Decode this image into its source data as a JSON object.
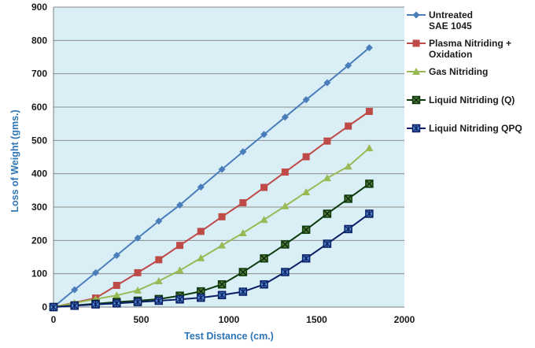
{
  "chart_data": {
    "type": "line",
    "title": "",
    "xlabel": "Test Distance (cm.)",
    "ylabel": "Loss of Weight (gms.)",
    "xlim": [
      0,
      2000
    ],
    "ylim": [
      0,
      900
    ],
    "xticks": [
      0,
      500,
      1000,
      1500,
      2000
    ],
    "yticks": [
      0,
      100,
      200,
      300,
      400,
      500,
      600,
      700,
      800,
      900
    ],
    "grid": "horizontal",
    "legend_position": "right",
    "plot_background": "#d9eef5",
    "series": [
      {
        "name_lines": [
          "Untreated",
          "SAE 1045"
        ],
        "color": "#4a7ebb",
        "marker": "diamond",
        "x": [
          0,
          120,
          240,
          360,
          480,
          600,
          720,
          840,
          960,
          1080,
          1200,
          1320,
          1440,
          1560,
          1680,
          1800
        ],
        "values": [
          0,
          52,
          103,
          155,
          207,
          258,
          306,
          360,
          413,
          466,
          518,
          570,
          622,
          673,
          725,
          778
        ]
      },
      {
        "name_lines": [
          "Plasma Nitriding +",
          "Oxidation"
        ],
        "color": "#be4b48",
        "marker": "square",
        "x": [
          0,
          240,
          360,
          480,
          600,
          720,
          840,
          960,
          1080,
          1200,
          1320,
          1440,
          1560,
          1680,
          1800
        ],
        "values": [
          0,
          27,
          65,
          103,
          142,
          185,
          227,
          271,
          313,
          359,
          405,
          451,
          498,
          543,
          587
        ]
      },
      {
        "name_lines": [
          "Gas Nitriding"
        ],
        "color": "#98b954",
        "marker": "triangle",
        "x": [
          0,
          120,
          240,
          360,
          480,
          600,
          720,
          840,
          960,
          1080,
          1200,
          1320,
          1440,
          1560,
          1680,
          1800
        ],
        "values": [
          0,
          12,
          24,
          35,
          50,
          78,
          110,
          147,
          185,
          222,
          262,
          303,
          345,
          387,
          422,
          477
        ]
      },
      {
        "name_lines": [
          "Liquid Nitriding (Q)"
        ],
        "color": "#0d3b0d",
        "marker": "square-x",
        "x": [
          0,
          120,
          240,
          360,
          480,
          600,
          720,
          840,
          960,
          1080,
          1200,
          1320,
          1440,
          1560,
          1680,
          1800
        ],
        "values": [
          0,
          5,
          10,
          15,
          19,
          24,
          34,
          47,
          68,
          105,
          146,
          188,
          232,
          280,
          325,
          370
        ]
      },
      {
        "name_lines": [
          "Liquid Nitriding QPQ"
        ],
        "color": "#0b1f66",
        "marker": "star-x",
        "x": [
          0,
          120,
          240,
          360,
          480,
          600,
          720,
          840,
          960,
          1080,
          1200,
          1320,
          1440,
          1560,
          1680,
          1800
        ],
        "values": [
          0,
          4,
          8,
          11,
          15,
          19,
          23,
          28,
          36,
          46,
          68,
          105,
          146,
          190,
          234,
          280
        ]
      }
    ]
  }
}
